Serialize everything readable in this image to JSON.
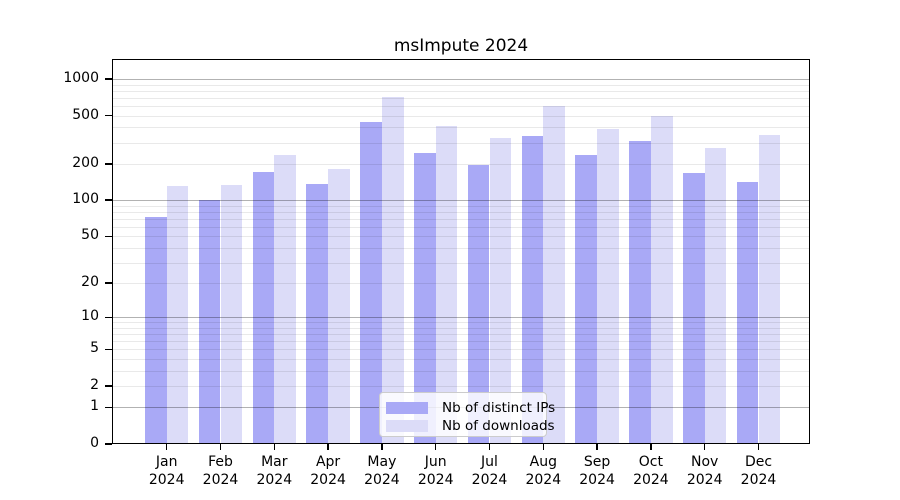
{
  "chart_data": {
    "type": "bar",
    "title": "msImpute 2024",
    "scale": "log1p",
    "grid": "on",
    "legend_position": "bottom-center",
    "ylim": [
      0,
      1460
    ],
    "ytick_labels": [
      "0",
      "1",
      "2",
      "5",
      "10",
      "20",
      "50",
      "100",
      "200",
      "500",
      "1000"
    ],
    "ytick_values": [
      0,
      1,
      2,
      5,
      10,
      20,
      50,
      100,
      200,
      500,
      1000
    ],
    "categories": [
      "Jan",
      "Feb",
      "Mar",
      "Apr",
      "May",
      "Jun",
      "Jul",
      "Aug",
      "Sep",
      "Oct",
      "Nov",
      "Dec"
    ],
    "xtick_year_label": "2024",
    "series": [
      {
        "name": "Nb of distinct IPs",
        "color": "#a9a9f6",
        "values": [
          72,
          100,
          172,
          136,
          440,
          244,
          196,
          338,
          237,
          306,
          168,
          142
        ]
      },
      {
        "name": "Nb of downloads",
        "color": "#dcdcf8",
        "values": [
          130,
          133,
          237,
          180,
          718,
          414,
          325,
          598,
          386,
          500,
          268,
          345
        ]
      }
    ],
    "colors": {
      "distinct_ips": "#a9a9f6",
      "downloads": "#dcdcf8",
      "grid_major": "#b3b3b3",
      "grid_minor": "#ececec",
      "spine": "#000000"
    }
  }
}
